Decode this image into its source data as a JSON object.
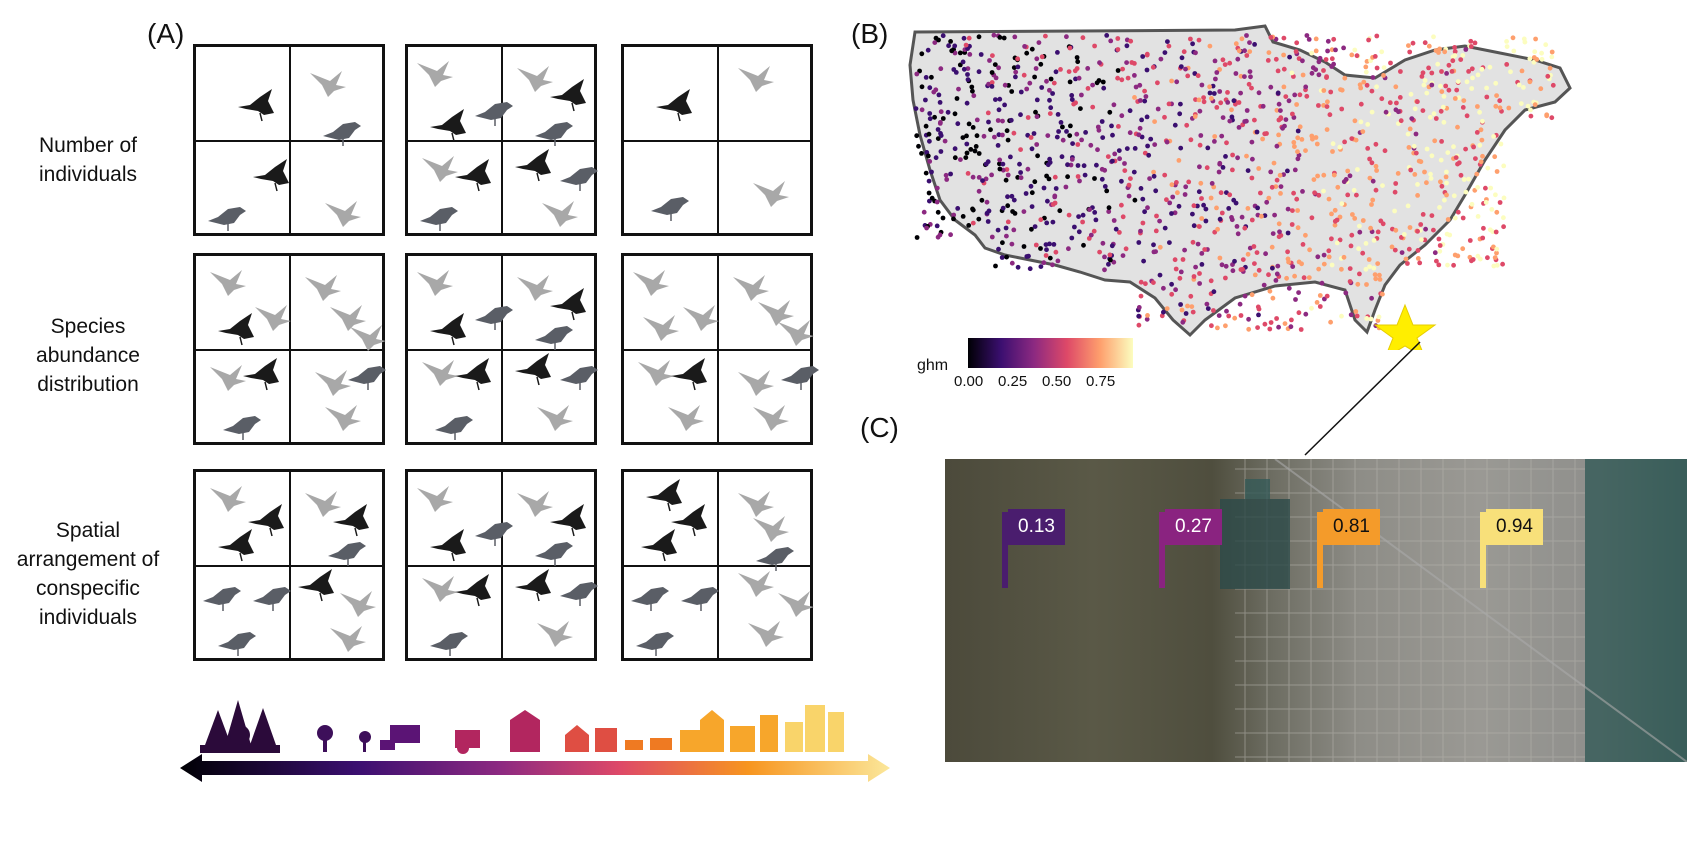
{
  "panels": {
    "a": "(A)",
    "b": "(B)",
    "c": "(C)"
  },
  "rows": [
    {
      "lines": [
        "Number of",
        "individuals"
      ]
    },
    {
      "lines": [
        "Species",
        "abundance",
        "distribution"
      ]
    },
    {
      "lines": [
        "Spatial",
        "arrangement of",
        "conspecific",
        "individuals"
      ]
    }
  ],
  "legend": {
    "title": "ghm",
    "ticks": [
      "0.00",
      "0.25",
      "0.50",
      "0.75"
    ],
    "colors": [
      "#000004",
      "#3b0f70",
      "#8c2981",
      "#de4968",
      "#fe9f6d",
      "#fcfdbf"
    ]
  },
  "flags": [
    {
      "label": "0.13",
      "color": "#4a1d6e",
      "text_color": "#ffffff"
    },
    {
      "label": "0.27",
      "color": "#8a2380",
      "text_color": "#ffffff"
    },
    {
      "label": "0.81",
      "color": "#f49b2a",
      "text_color": "#111111"
    },
    {
      "label": "0.94",
      "color": "#f8e07a",
      "text_color": "#111111"
    }
  ],
  "bird_colors": {
    "black": "#1a1a1a",
    "dark_gray": "#5a5e66",
    "light_gray": "#a8a8a8"
  }
}
